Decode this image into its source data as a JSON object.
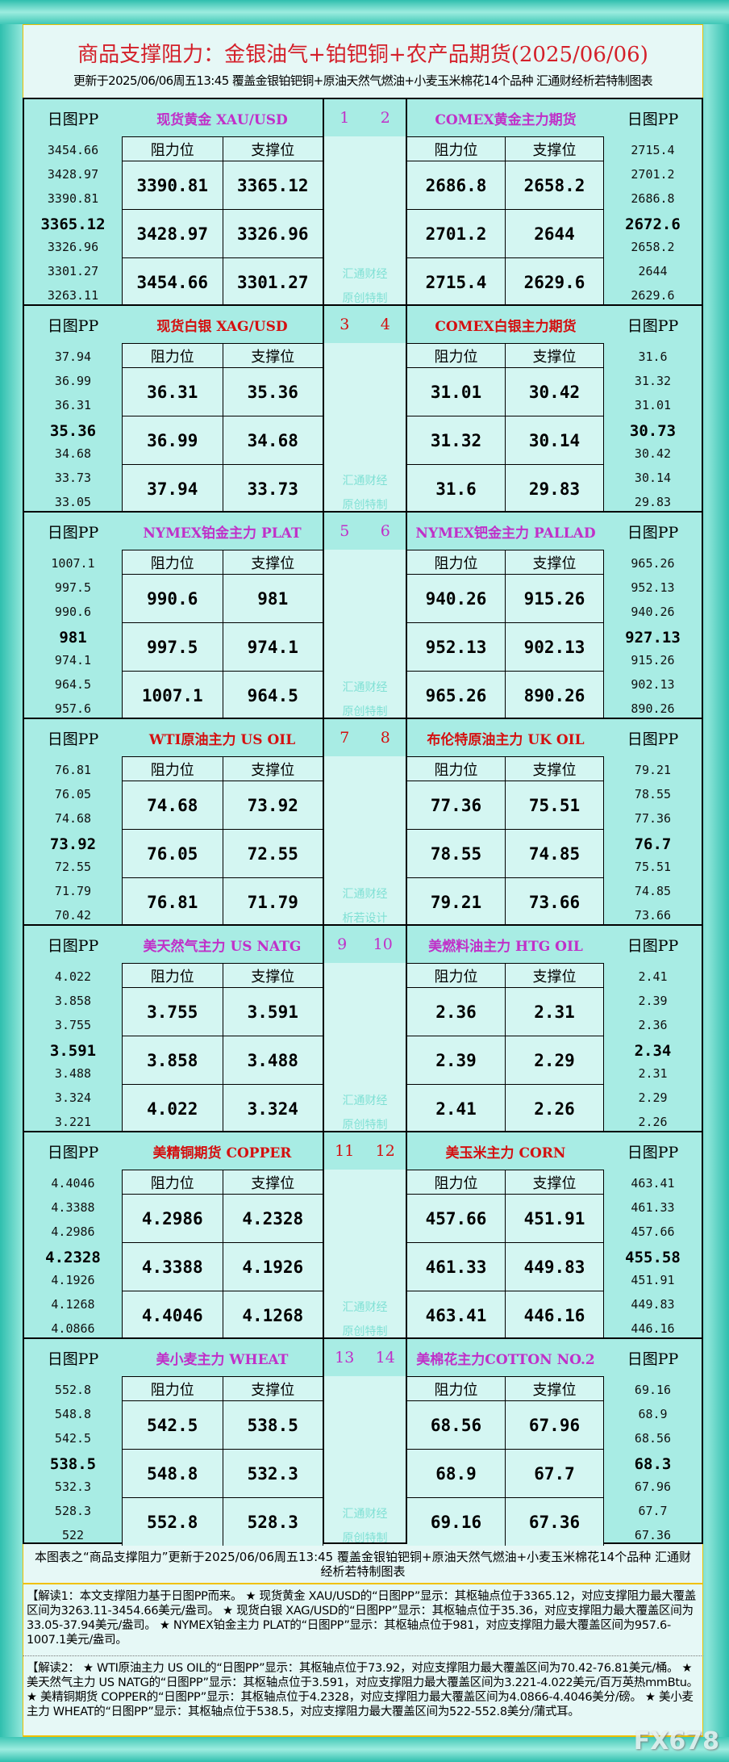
{
  "header": {
    "title": "商品支撑阻力：金银油气+铂钯铜+农产品期货(2025/06/06)",
    "subtitle": "更新于2025/06/06周五13:45 覆盖金银铂钯铜+原油天然气燃油+小麦玉米棉花14个品种 汇通财经析若特制图表"
  },
  "labels": {
    "pp": "日图PP",
    "resistance": "阻力位",
    "support": "支撑位"
  },
  "colors": {
    "odd": "#c030c8",
    "even": "#d41010",
    "title": "#d4202a"
  },
  "blocks": [
    {
      "color": "odd",
      "watermark": [
        "汇通财经",
        "原创特制"
      ],
      "left": {
        "num": "1",
        "name": "现货黄金 XAU/USD",
        "pp": [
          "3454.66",
          "3428.97",
          "3390.81",
          "3365.12",
          "3326.96",
          "3301.27",
          "3263.11"
        ],
        "rows": [
          [
            "3390.81",
            "3365.12"
          ],
          [
            "3428.97",
            "3326.96"
          ],
          [
            "3454.66",
            "3301.27"
          ]
        ]
      },
      "right": {
        "num": "2",
        "name": "COMEX黄金主力期货",
        "pp": [
          "2715.4",
          "2701.2",
          "2686.8",
          "2672.6",
          "2658.2",
          "2644",
          "2629.6"
        ],
        "rows": [
          [
            "2686.8",
            "2658.2"
          ],
          [
            "2701.2",
            "2644"
          ],
          [
            "2715.4",
            "2629.6"
          ]
        ]
      }
    },
    {
      "color": "even",
      "watermark": [
        "汇通财经",
        "原创特制"
      ],
      "left": {
        "num": "3",
        "name": "现货白银 XAG/USD",
        "pp": [
          "37.94",
          "36.99",
          "36.31",
          "35.36",
          "34.68",
          "33.73",
          "33.05"
        ],
        "rows": [
          [
            "36.31",
            "35.36"
          ],
          [
            "36.99",
            "34.68"
          ],
          [
            "37.94",
            "33.73"
          ]
        ]
      },
      "right": {
        "num": "4",
        "name": "COMEX白银主力期货",
        "pp": [
          "31.6",
          "31.32",
          "31.01",
          "30.73",
          "30.42",
          "30.14",
          "29.83"
        ],
        "rows": [
          [
            "31.01",
            "30.42"
          ],
          [
            "31.32",
            "30.14"
          ],
          [
            "31.6",
            "29.83"
          ]
        ]
      }
    },
    {
      "color": "odd",
      "watermark": [
        "汇通财经",
        "原创特制"
      ],
      "left": {
        "num": "5",
        "name": "NYMEX铂金主力 PLAT",
        "pp": [
          "1007.1",
          "997.5",
          "990.6",
          "981",
          "974.1",
          "964.5",
          "957.6"
        ],
        "rows": [
          [
            "990.6",
            "981"
          ],
          [
            "997.5",
            "974.1"
          ],
          [
            "1007.1",
            "964.5"
          ]
        ]
      },
      "right": {
        "num": "6",
        "name": "NYMEX钯金主力 PALLAD",
        "pp": [
          "965.26",
          "952.13",
          "940.26",
          "927.13",
          "915.26",
          "902.13",
          "890.26"
        ],
        "rows": [
          [
            "940.26",
            "915.26"
          ],
          [
            "952.13",
            "902.13"
          ],
          [
            "965.26",
            "890.26"
          ]
        ]
      }
    },
    {
      "color": "even",
      "watermark": [
        "汇通财经",
        "析若设计"
      ],
      "left": {
        "num": "7",
        "name": "WTI原油主力 US OIL",
        "pp": [
          "76.81",
          "76.05",
          "74.68",
          "73.92",
          "72.55",
          "71.79",
          "70.42"
        ],
        "rows": [
          [
            "74.68",
            "73.92"
          ],
          [
            "76.05",
            "72.55"
          ],
          [
            "76.81",
            "71.79"
          ]
        ]
      },
      "right": {
        "num": "8",
        "name": "布伦特原油主力 UK OIL",
        "pp": [
          "79.21",
          "78.55",
          "77.36",
          "76.7",
          "75.51",
          "74.85",
          "73.66"
        ],
        "rows": [
          [
            "77.36",
            "75.51"
          ],
          [
            "78.55",
            "74.85"
          ],
          [
            "79.21",
            "73.66"
          ]
        ]
      }
    },
    {
      "color": "odd",
      "watermark": [
        "汇通财经",
        "原创特制"
      ],
      "left": {
        "num": "9",
        "name": "美天然气主力 US NATG",
        "pp": [
          "4.022",
          "3.858",
          "3.755",
          "3.591",
          "3.488",
          "3.324",
          "3.221"
        ],
        "rows": [
          [
            "3.755",
            "3.591"
          ],
          [
            "3.858",
            "3.488"
          ],
          [
            "4.022",
            "3.324"
          ]
        ]
      },
      "right": {
        "num": "10",
        "name": "美燃料油主力 HTG OIL",
        "pp": [
          "2.41",
          "2.39",
          "2.36",
          "2.34",
          "2.31",
          "2.29",
          "2.26"
        ],
        "rows": [
          [
            "2.36",
            "2.31"
          ],
          [
            "2.39",
            "2.29"
          ],
          [
            "2.41",
            "2.26"
          ]
        ]
      }
    },
    {
      "color": "even",
      "watermark": [
        "汇通财经",
        "原创特制"
      ],
      "left": {
        "num": "11",
        "name": "美精铜期货 COPPER",
        "pp": [
          "4.4046",
          "4.3388",
          "4.2986",
          "4.2328",
          "4.1926",
          "4.1268",
          "4.0866"
        ],
        "rows": [
          [
            "4.2986",
            "4.2328"
          ],
          [
            "4.3388",
            "4.1926"
          ],
          [
            "4.4046",
            "4.1268"
          ]
        ]
      },
      "right": {
        "num": "12",
        "name": "美玉米主力 CORN",
        "pp": [
          "463.41",
          "461.33",
          "457.66",
          "455.58",
          "451.91",
          "449.83",
          "446.16"
        ],
        "rows": [
          [
            "457.66",
            "451.91"
          ],
          [
            "461.33",
            "449.83"
          ],
          [
            "463.41",
            "446.16"
          ]
        ]
      }
    },
    {
      "color": "odd",
      "watermark": [
        "汇通财经",
        "原创特制"
      ],
      "left": {
        "num": "13",
        "name": "美小麦主力 WHEAT",
        "pp": [
          "552.8",
          "548.8",
          "542.5",
          "538.5",
          "532.3",
          "528.3",
          "522"
        ],
        "rows": [
          [
            "542.5",
            "538.5"
          ],
          [
            "548.8",
            "532.3"
          ],
          [
            "552.8",
            "528.3"
          ]
        ]
      },
      "right": {
        "num": "14",
        "name": "美棉花主力COTTON NO.2",
        "pp": [
          "69.16",
          "68.9",
          "68.56",
          "68.3",
          "67.96",
          "67.7",
          "67.36"
        ],
        "rows": [
          [
            "68.56",
            "67.96"
          ],
          [
            "68.9",
            "67.7"
          ],
          [
            "69.16",
            "67.36"
          ]
        ]
      }
    }
  ],
  "footer": {
    "note": "本图表之“商品支撑阻力”更新于2025/06/06周五13:45 覆盖金银铂钯铜+原油天然气燃油+小麦玉米棉花14个品种 汇通财经析若特制图表",
    "interp1": "【解读1：本文支撑阻力基于日图PP而来。 ★ 现货黄金 XAU/USD的“日图PP”显示：其枢轴点位于3365.12，对应支撑阻力最大覆盖区间为3263.11-3454.66美元/盎司。 ★ 现货白银 XAG/USD的“日图PP”显示：其枢轴点位于35.36，对应支撑阻力最大覆盖区间为33.05-37.94美元/盎司。 ★ NYMEX铂金主力 PLAT的“日图PP”显示：其枢轴点位于981，对应支撑阻力最大覆盖区间为957.6-1007.1美元/盎司。",
    "interp2": "【解读2： ★ WTI原油主力 US OIL的“日图PP”显示：其枢轴点位于73.92，对应支撑阻力最大覆盖区间为70.42-76.81美元/桶。 ★ 美天然气主力 US NATG的“日图PP”显示：其枢轴点位于3.591，对应支撑阻力最大覆盖区间为3.221-4.022美元/百万英热mmBtu。 ★ 美精铜期货 COPPER的“日图PP”显示：其枢轴点位于4.2328，对应支撑阻力最大覆盖区间为4.0866-4.4046美分/磅。 ★ 美小麦主力 WHEAT的“日图PP”显示：其枢轴点位于538.5，对应支撑阻力最大覆盖区间为522-552.8美分/蒲式耳。",
    "logo": "FX678"
  }
}
